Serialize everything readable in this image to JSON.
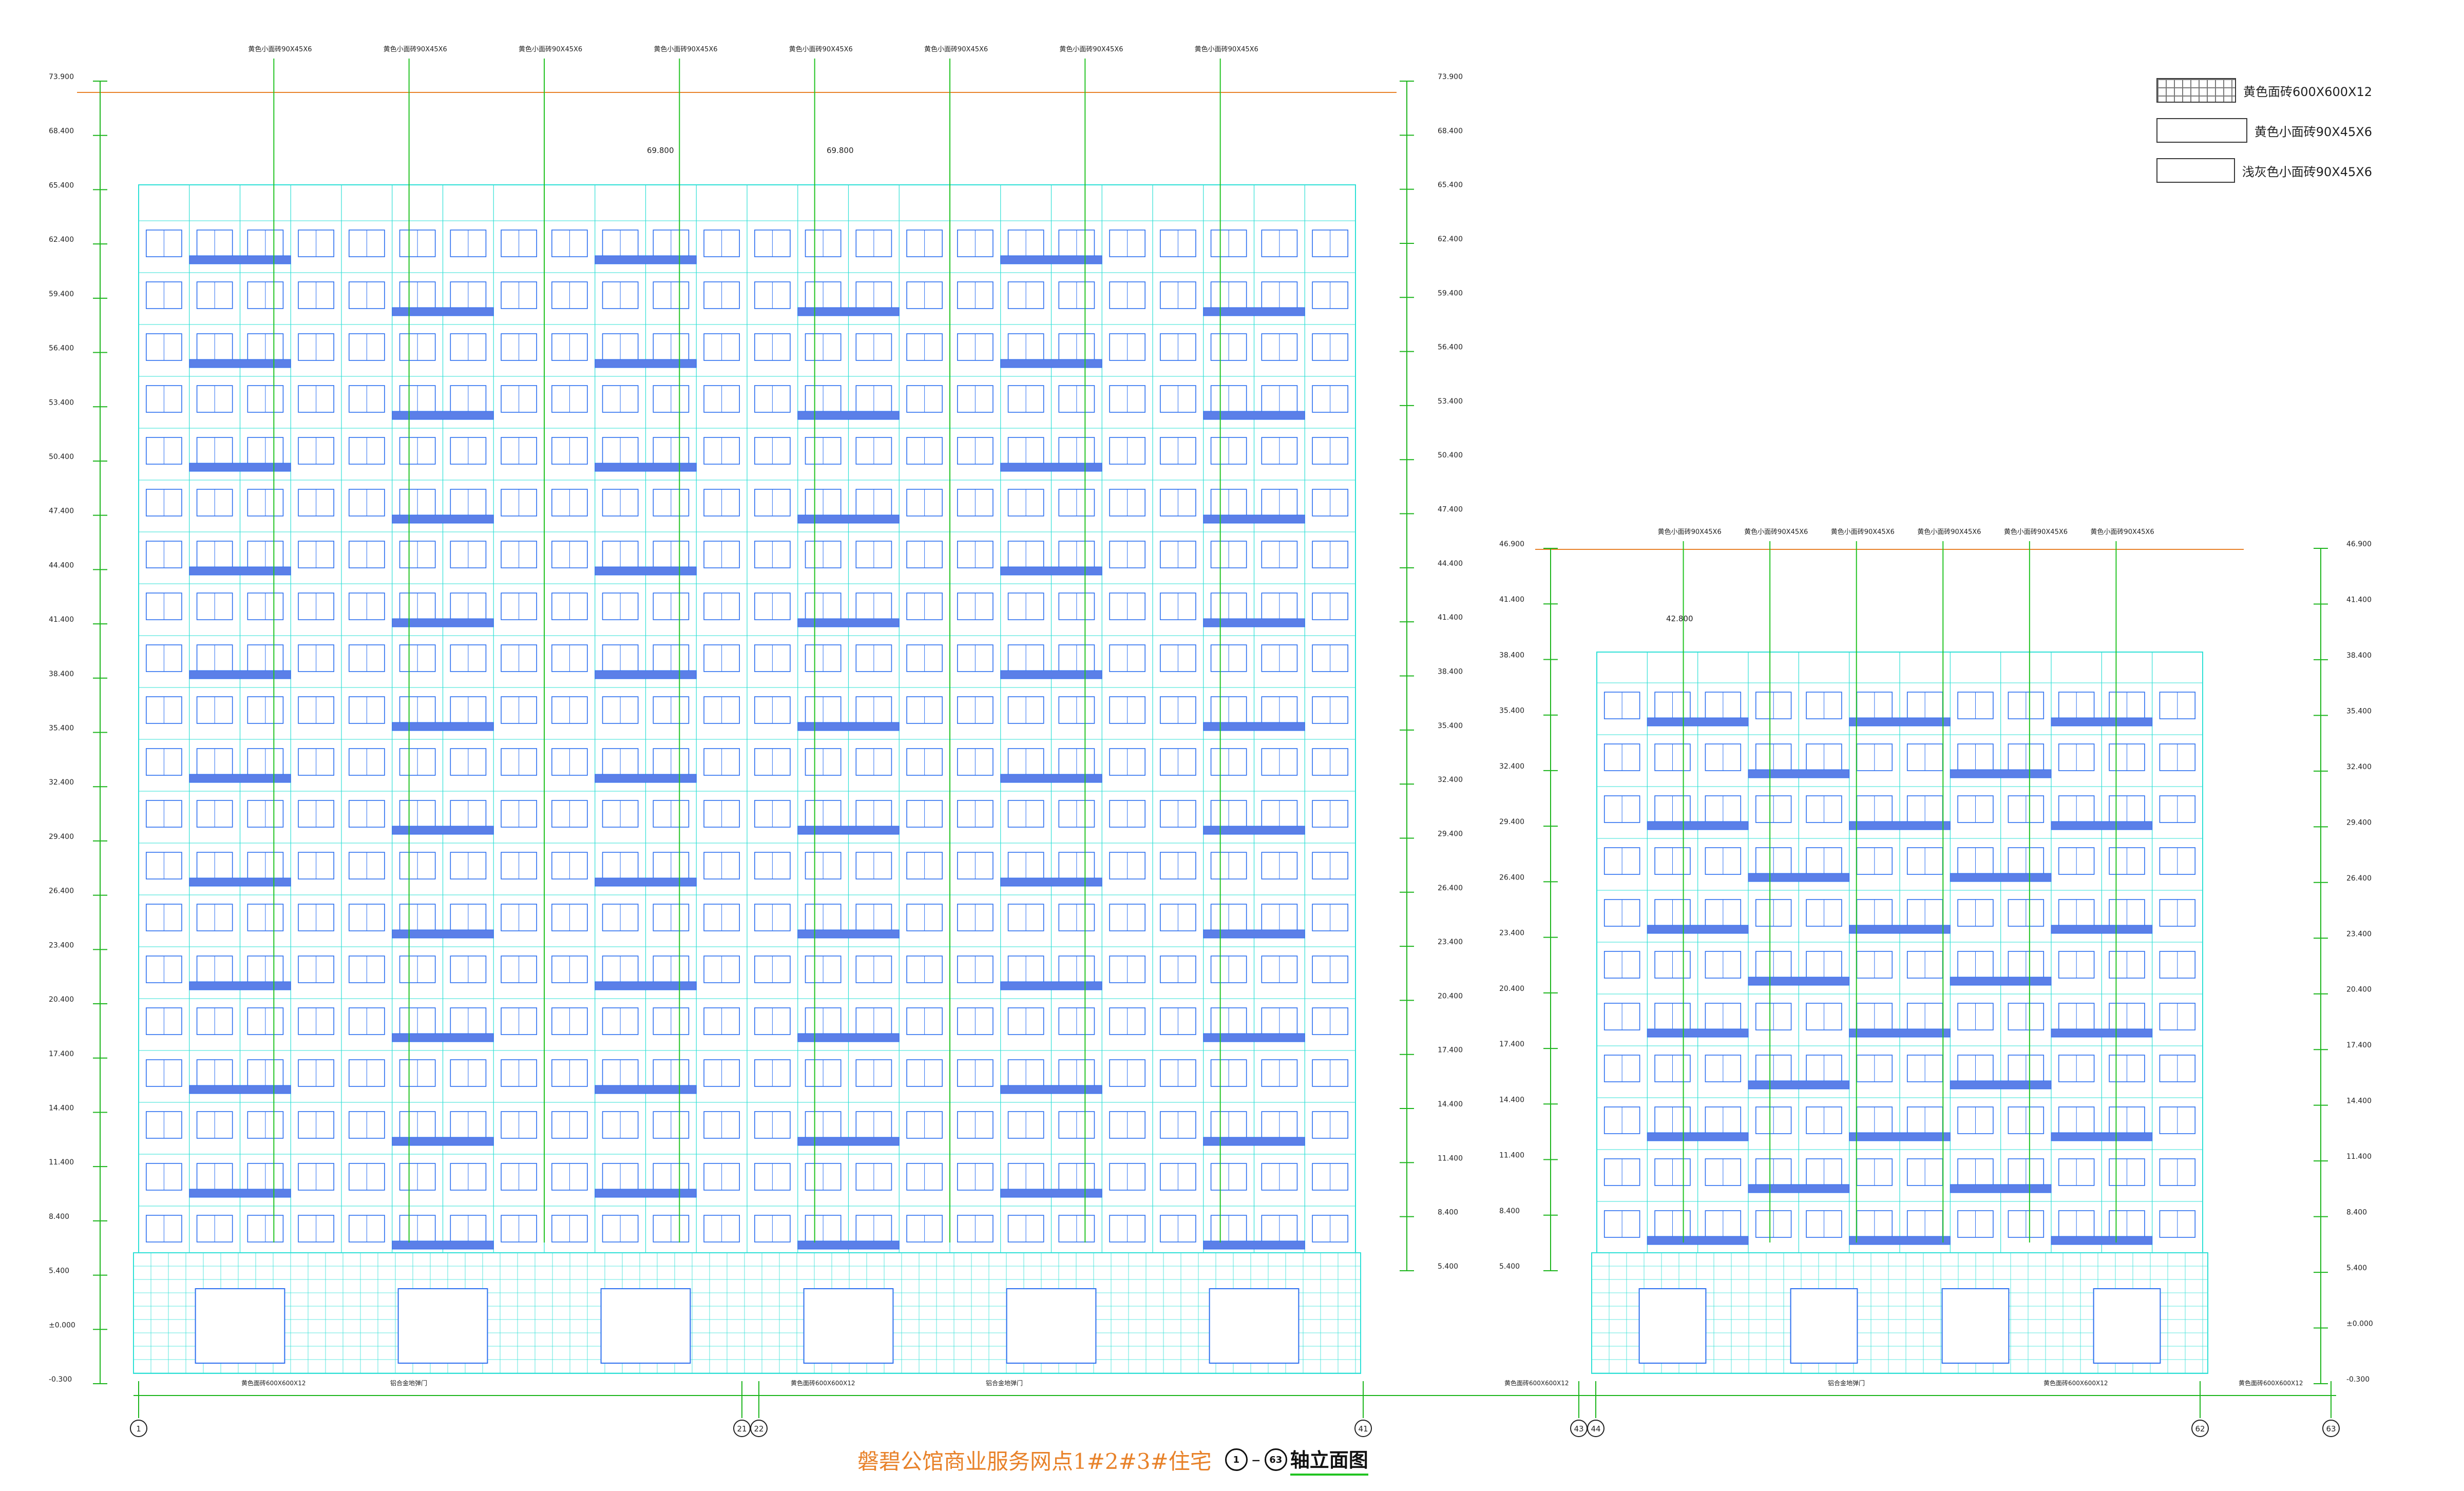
{
  "title": "磐碧公馆商业服务网点1#2#3#住宅",
  "axis_range": {
    "from": "1",
    "to": "63"
  },
  "elevation_label": "轴立面图",
  "legend": [
    {
      "swatch": "grid",
      "label": "黄色面砖600X600X12"
    },
    {
      "swatch": "plain",
      "label": "黄色小面砖90X45X6"
    },
    {
      "swatch": "plain",
      "label": "浅灰色小面砖90X45X6"
    }
  ],
  "level_marks": {
    "tall_left": [
      "73.900",
      "68.400",
      "65.400",
      "62.400",
      "59.400",
      "56.400",
      "53.400",
      "50.400",
      "47.400",
      "44.400",
      "41.400",
      "38.400",
      "35.400",
      "32.400",
      "29.400",
      "26.400",
      "23.400",
      "20.400",
      "17.400",
      "14.400",
      "11.400",
      "8.400",
      "5.400",
      "±0.000",
      "-0.300"
    ],
    "tall_right": [
      "73.900",
      "68.400",
      "65.400",
      "62.400",
      "59.400",
      "56.400",
      "53.400",
      "50.400",
      "47.400",
      "44.400",
      "41.400",
      "38.400",
      "35.400",
      "32.400",
      "29.400",
      "26.400",
      "23.400",
      "20.400",
      "17.400",
      "14.400",
      "11.400",
      "8.400",
      "5.400"
    ],
    "short_left": [
      "46.900",
      "41.400",
      "38.400",
      "35.400",
      "32.400",
      "29.400",
      "26.400",
      "23.400",
      "20.400",
      "17.400",
      "14.400",
      "11.400",
      "8.400",
      "5.400"
    ],
    "short_right": [
      "46.900",
      "41.400",
      "38.400",
      "35.400",
      "32.400",
      "29.400",
      "26.400",
      "23.400",
      "20.400",
      "17.400",
      "14.400",
      "11.400",
      "8.400",
      "5.400",
      "±0.000",
      "-0.300"
    ]
  },
  "roof_marks": {
    "tall": [
      "69.800",
      "69.800"
    ],
    "short": "42.800"
  },
  "grid_axes": [
    "1",
    "21",
    "22",
    "41",
    "43",
    "44",
    "62",
    "63"
  ],
  "callouts": {
    "tall": [
      "黄色小面砖90X45X6",
      "黄色小面砖90X45X6",
      "黄色小面砖90X45X6",
      "黄色小面砖90X45X6",
      "黄色小面砖90X45X6",
      "黄色小面砖90X45X6",
      "黄色小面砖90X45X6",
      "黄色小面砖90X45X6"
    ],
    "short": [
      "黄色小面砖90X45X6",
      "黄色小面砖90X45X6",
      "黄色小面砖90X45X6",
      "黄色小面砖90X45X6",
      "黄色小面砖90X45X6",
      "黄色小面砖90X45X6"
    ]
  },
  "base_notes": {
    "tile": "黄色面砖600X600X12",
    "door": "铝合金地弹门"
  },
  "colors": {
    "outline": "#2fe0d6",
    "window": "#2c6ff0",
    "balcony_fill": "#5b7fe8",
    "leader": "#22c322",
    "parapet": "#e8822a",
    "dimension": "#1db51d",
    "text": "#222222"
  }
}
